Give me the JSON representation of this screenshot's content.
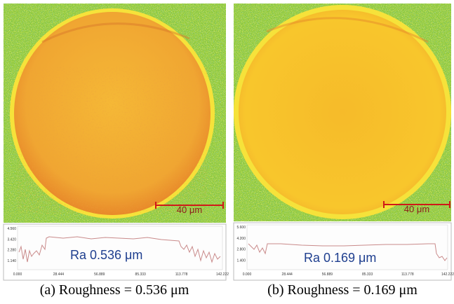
{
  "panels": [
    {
      "scale_bar": "40 μm",
      "ra_label": "Ra 0.536 μm",
      "profile": {
        "y_ticks": [
          "4.560",
          "3.420",
          "2.280",
          "1.140"
        ],
        "x_ticks": [
          "0.000",
          "28.444",
          "56.889",
          "85.333",
          "113.778",
          "142.222"
        ]
      },
      "caption": "(a) Roughness = 0.536 μm"
    },
    {
      "scale_bar": "40 μm",
      "ra_label": "Ra 0.169 μm",
      "profile": {
        "y_ticks": [
          "5.600",
          "4.200",
          "2.800",
          "1.400"
        ],
        "x_ticks": [
          "0.000",
          "28.444",
          "56.889",
          "85.333",
          "113.778",
          "142.222"
        ]
      },
      "caption": "(b) Roughness = 0.169 μm"
    }
  ]
}
